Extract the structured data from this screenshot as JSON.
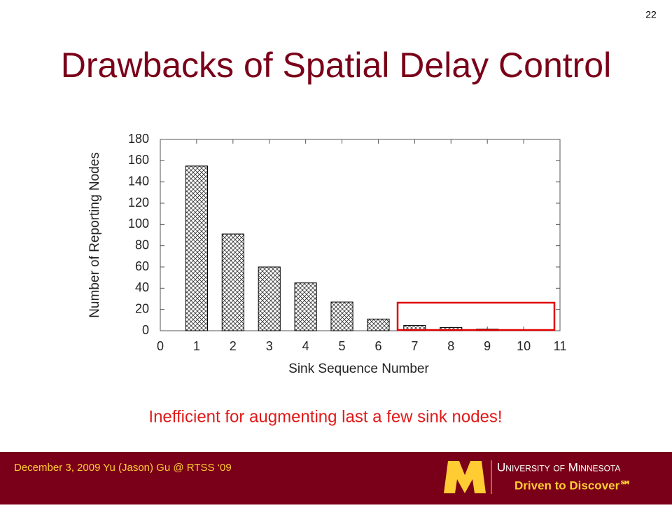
{
  "slide": {
    "page_number": "22",
    "title": "Drawbacks of Spatial Delay Control",
    "caption": "Inefficient for augmenting last a few sink nodes!",
    "footer": "December 3, 2009 Yu (Jason) Gu @ RTSS ‘09",
    "logo_university": "University of Minnesota",
    "logo_tagline": "Driven to Discover℠"
  },
  "chart_data": {
    "type": "bar",
    "x": [
      1,
      2,
      3,
      4,
      5,
      6,
      7,
      8,
      9,
      10
    ],
    "values": [
      155,
      91,
      60,
      45,
      27,
      11,
      5,
      3,
      1.5,
      0
    ],
    "xlim": [
      0,
      11
    ],
    "xticks": [
      0,
      1,
      2,
      3,
      4,
      5,
      6,
      7,
      8,
      9,
      10,
      11
    ],
    "ylim": [
      0,
      180
    ],
    "yticks": [
      0,
      20,
      40,
      60,
      80,
      100,
      120,
      140,
      160,
      180
    ],
    "xlabel": "Sink Sequence Number",
    "ylabel": "Number of Reporting Nodes",
    "color": "#000000"
  }
}
